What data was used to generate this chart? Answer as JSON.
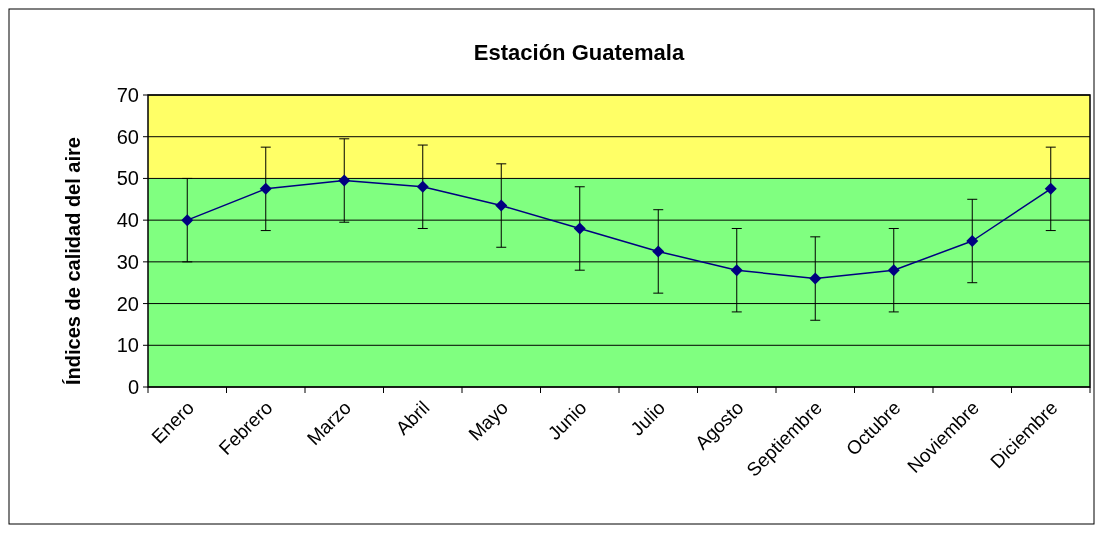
{
  "chart_data": {
    "type": "line",
    "title": "Estación Guatemala",
    "ylabel": "Índices de calidad del aire",
    "categories": [
      "Enero",
      "Febrero",
      "Marzo",
      "Abril",
      "Mayo",
      "Junio",
      "Julio",
      "Agosto",
      "Septiembre",
      "Octubre",
      "Noviembre",
      "Diciembre"
    ],
    "series": [
      {
        "color": "#000080",
        "values": [
          40,
          47.5,
          49.5,
          48,
          43.5,
          38,
          32.5,
          28,
          26,
          28,
          35,
          47.5
        ],
        "errors": [
          10,
          10,
          10,
          10,
          10,
          10,
          10,
          10,
          10,
          10,
          10,
          10
        ]
      }
    ],
    "ylim": [
      0,
      70
    ],
    "yticks": [
      0,
      10,
      20,
      30,
      40,
      50,
      60,
      70
    ],
    "grid": "y",
    "marker": "diamond",
    "line_style": "solid",
    "bands": [
      {
        "axis": "y",
        "from": 0,
        "to": 50,
        "color": "#80ff80"
      },
      {
        "axis": "y",
        "from": 50,
        "to": 70,
        "color": "#ffff66"
      }
    ]
  }
}
